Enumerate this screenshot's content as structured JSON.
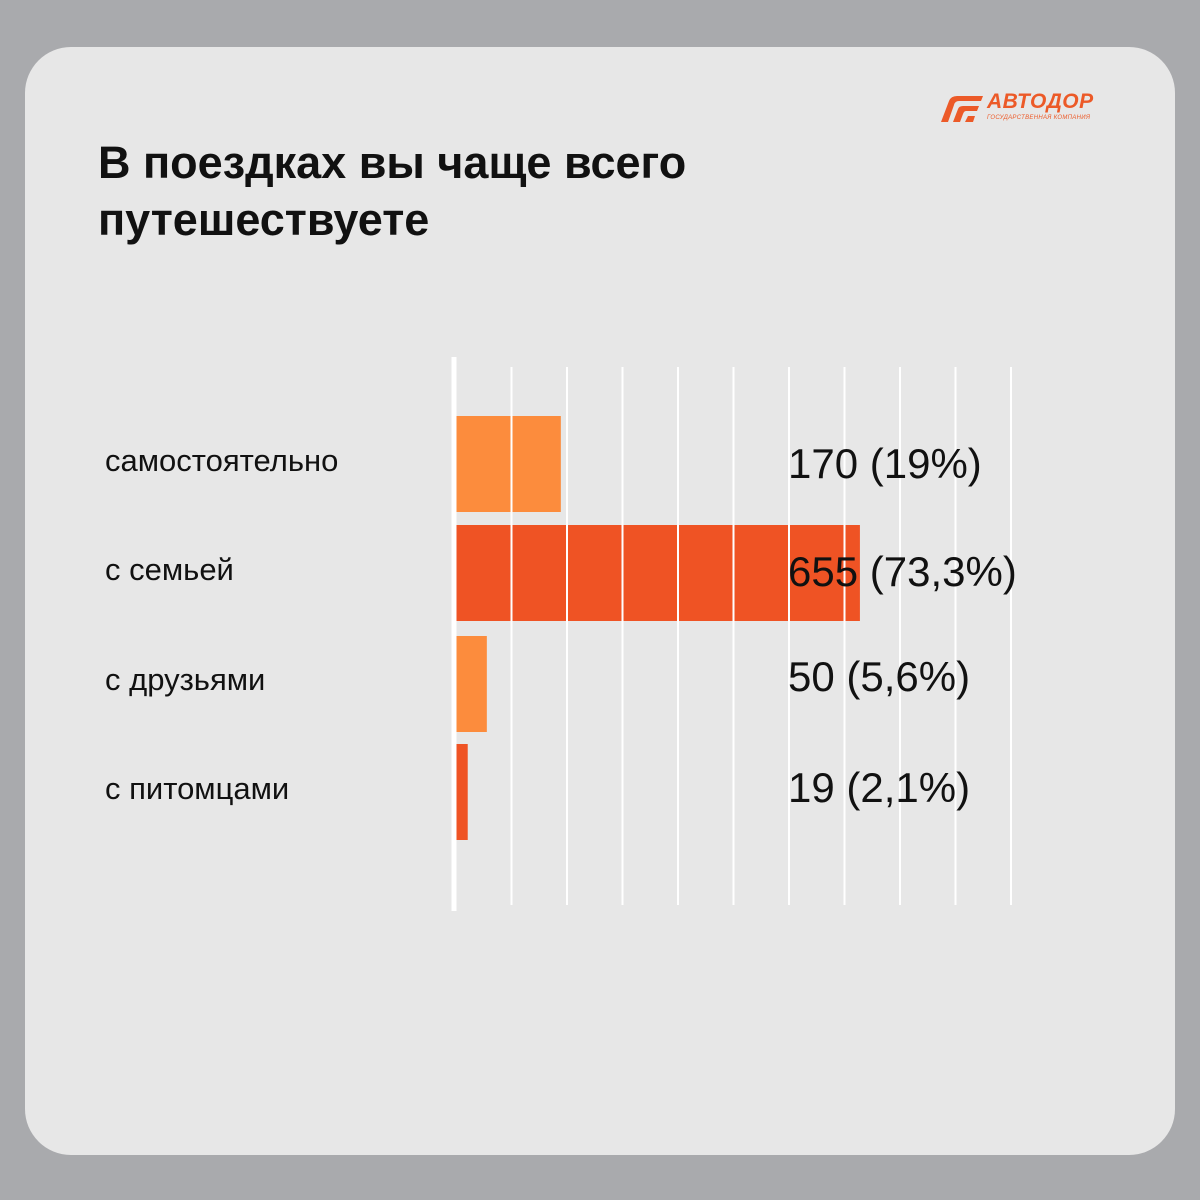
{
  "header": {
    "title_line1": "В поездках вы чаще всего",
    "title_line2": "путешествуете"
  },
  "logo": {
    "name": "АВТОДОР",
    "subtitle": "государственная компания",
    "icon": "road-stripes-icon",
    "color": "#ec5a28"
  },
  "chart_data": {
    "type": "bar",
    "orientation": "horizontal",
    "title": "В поездках вы чаще всего путешествуете",
    "categories": [
      "самостоятельно",
      "с семьей",
      "с друзьями",
      "с питомцами"
    ],
    "values": [
      170,
      655,
      50,
      19
    ],
    "percents": [
      19,
      73.3,
      5.6,
      2.1
    ],
    "labels": [
      "170 (19%)",
      "655 (73,3%)",
      "50 (5,6%)",
      "19 (2,1%)"
    ],
    "colors": [
      "#fc8c3d",
      "#ef5324",
      "#fc8c3d",
      "#ef5324"
    ],
    "xlim": [
      0,
      900
    ],
    "grid": true,
    "legend": "none"
  }
}
